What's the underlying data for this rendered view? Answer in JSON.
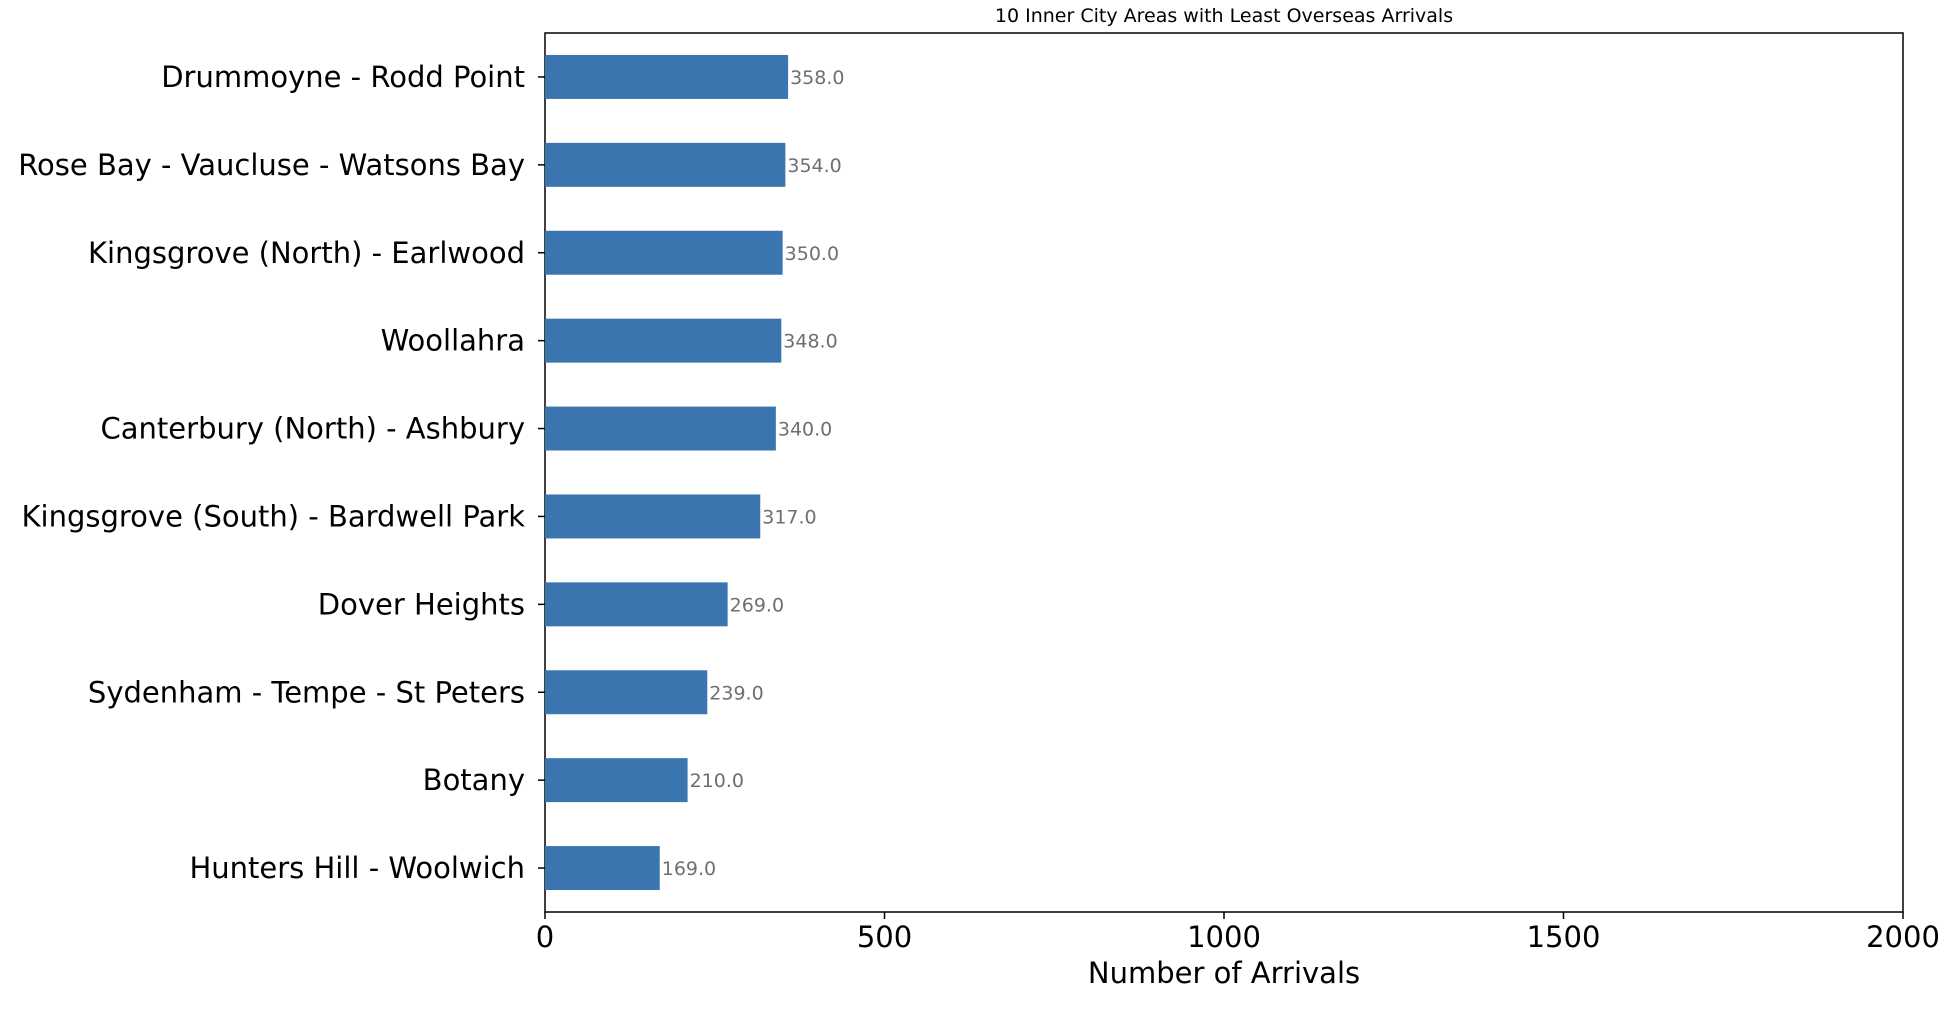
{
  "chart_data": {
    "type": "bar",
    "orientation": "horizontal",
    "title": "10 Inner City Areas with Least Overseas Arrivals",
    "xlabel": "Number of Arrivals",
    "ylabel": "",
    "xlim": [
      0,
      2000
    ],
    "xticks": [
      "0",
      "500",
      "1000",
      "1500",
      "2000"
    ],
    "categories": [
      "Drummoyne - Rodd Point",
      "Rose Bay - Vaucluse - Watsons Bay",
      "Kingsgrove (North) - Earlwood",
      "Woollahra",
      "Canterbury (North) - Ashbury",
      "Kingsgrove (South) - Bardwell Park",
      "Dover Heights",
      "Sydenham - Tempe - St Peters",
      "Botany",
      "Hunters Hill - Woolwich"
    ],
    "values": [
      358,
      354,
      350,
      348,
      340,
      317,
      269,
      239,
      210,
      169
    ],
    "data_labels": [
      "358.0",
      "354.0",
      "350.0",
      "348.0",
      "340.0",
      "317.0",
      "269.0",
      "239.0",
      "210.0",
      "169.0"
    ],
    "grid": false,
    "legend": false,
    "bar_color": "#3b75af",
    "data_label_color": "#6f6f6f"
  }
}
